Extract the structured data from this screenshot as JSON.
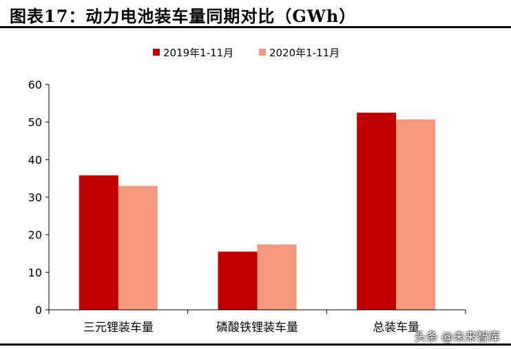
{
  "title": "图表17：动力电池装车量同期对比（GWh）",
  "watermark": "头条 @未来智库",
  "colors": {
    "series_2019": "#C00000",
    "series_2020": "#F4977E",
    "axis": "#000000"
  },
  "chart_data": {
    "type": "bar",
    "categories": [
      "三元锂装车量",
      "磷酸铁锂装车量",
      "总装车量"
    ],
    "series": [
      {
        "name": "2019年1-11月",
        "values": [
          35.8,
          15.5,
          52.5
        ]
      },
      {
        "name": "2020年1-11月",
        "values": [
          33.0,
          17.4,
          50.7
        ]
      }
    ],
    "ylim": [
      0,
      60
    ],
    "yticks": [
      0,
      10,
      20,
      30,
      40,
      50,
      60
    ],
    "legend_position": "top",
    "grid": false
  }
}
